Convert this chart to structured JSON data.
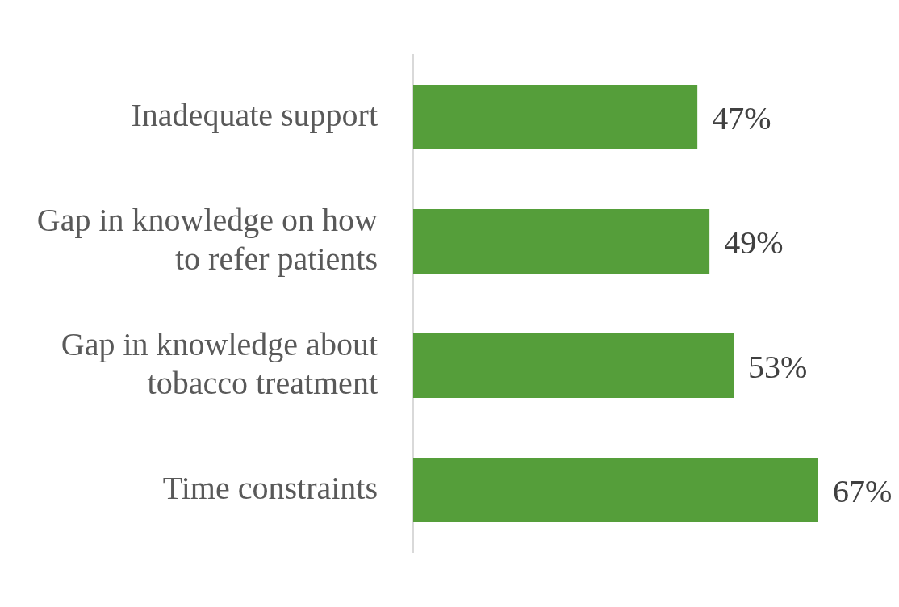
{
  "chart_data": {
    "type": "bar",
    "orientation": "horizontal",
    "tick_labels": "y",
    "categories": [
      "Inadequate support",
      "Gap in knowledge on how to refer patients",
      "Gap in knowledge about tobacco treatment",
      "Time constraints"
    ],
    "values": [
      47,
      49,
      53,
      67
    ],
    "value_labels": [
      "47%",
      "49%",
      "53%",
      "67%"
    ],
    "color": "#559e3a"
  }
}
